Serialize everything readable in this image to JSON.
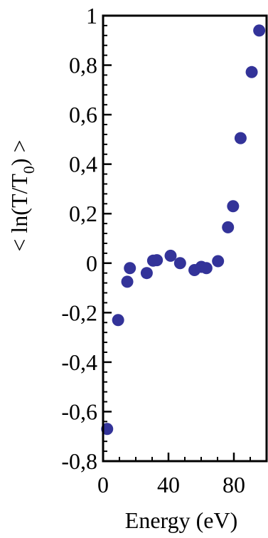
{
  "chart_data": {
    "type": "scatter",
    "title": "",
    "xlabel": "Energy (eV)",
    "ylabel": "< ln(T/T0) >",
    "ylabel_parts": {
      "prefix": "< ln(T/T",
      "subscript": "0",
      "suffix": ") >"
    },
    "xlim": [
      0,
      100
    ],
    "ylim": [
      -0.8,
      1.0
    ],
    "x_ticks": [
      0,
      40,
      80
    ],
    "x_tick_labels": [
      "0",
      "40",
      "80"
    ],
    "y_ticks": [
      -0.8,
      -0.6,
      -0.4,
      -0.2,
      0,
      0.2,
      0.4,
      0.6,
      0.8,
      1.0
    ],
    "y_tick_labels": [
      "-0,8",
      "-0,6",
      "-0,4",
      "-0,2",
      "0",
      "0,2",
      "0,4",
      "0,6",
      "0,8",
      "1"
    ],
    "grid": false,
    "marker_color": "#333399",
    "points": [
      {
        "x": 2.5,
        "y": -0.67
      },
      {
        "x": 9.2,
        "y": -0.23
      },
      {
        "x": 14.8,
        "y": -0.075
      },
      {
        "x": 16.4,
        "y": -0.02
      },
      {
        "x": 26.7,
        "y": -0.04
      },
      {
        "x": 30.6,
        "y": 0.01
      },
      {
        "x": 32.9,
        "y": 0.012
      },
      {
        "x": 41.3,
        "y": 0.03
      },
      {
        "x": 47.1,
        "y": 0.0
      },
      {
        "x": 55.9,
        "y": -0.028
      },
      {
        "x": 60.1,
        "y": -0.015
      },
      {
        "x": 63.2,
        "y": -0.02
      },
      {
        "x": 70.3,
        "y": 0.008
      },
      {
        "x": 76.4,
        "y": 0.145
      },
      {
        "x": 79.5,
        "y": 0.23
      },
      {
        "x": 84.1,
        "y": 0.505
      },
      {
        "x": 90.9,
        "y": 0.772
      },
      {
        "x": 95.5,
        "y": 0.94
      }
    ]
  }
}
